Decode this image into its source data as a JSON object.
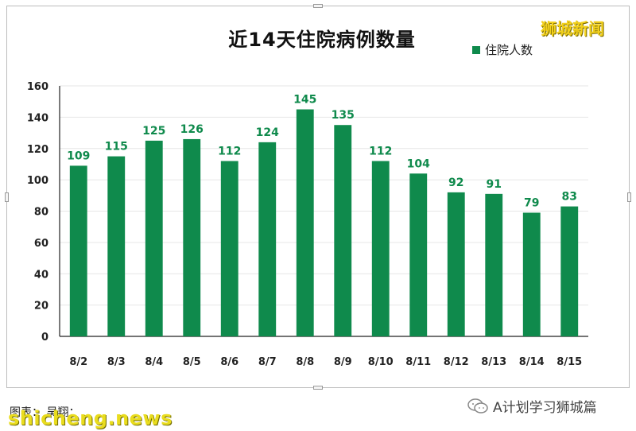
{
  "title": "近14天住院病例数量",
  "legend_label": "住院人数",
  "brand_tag": "狮城新闻",
  "footer_left": "图表：      吴翔：           ",
  "watermark_domain": "shicheng.news",
  "wechat_text": "A计划学习狮城篇",
  "colors": {
    "bar": "#0f8a4c",
    "label": "#0f8a4c",
    "axis": "#222222",
    "grid": "#e6e6e6"
  },
  "chart_data": {
    "type": "bar",
    "title": "近14天住院病例数量",
    "categories": [
      "8/2",
      "8/3",
      "8/4",
      "8/5",
      "8/6",
      "8/7",
      "8/8",
      "8/9",
      "8/10",
      "8/11",
      "8/12",
      "8/13",
      "8/14",
      "8/15"
    ],
    "series": [
      {
        "name": "住院人数",
        "values": [
          109,
          115,
          125,
          126,
          112,
          124,
          145,
          135,
          112,
          104,
          92,
          91,
          79,
          83
        ]
      }
    ],
    "ylim": [
      0,
      160
    ],
    "yticks": [
      0,
      20,
      40,
      60,
      80,
      100,
      120,
      140,
      160
    ],
    "grid": true,
    "legend": "top-right",
    "data_labels": true
  }
}
